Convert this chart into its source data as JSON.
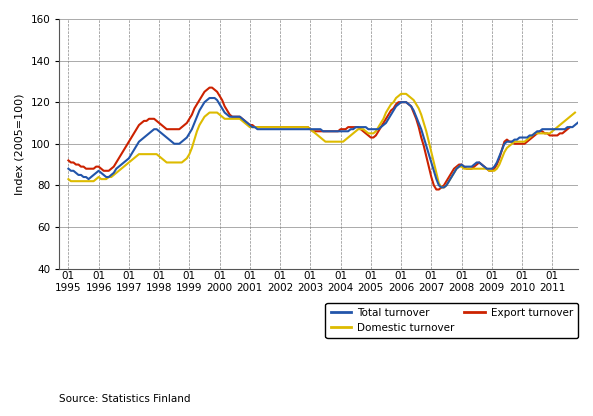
{
  "ylabel": "Index (2005=100)",
  "source": "Source: Statistics Finland",
  "ylim": [
    40,
    160
  ],
  "yticks": [
    40,
    60,
    80,
    100,
    120,
    140,
    160
  ],
  "colors": {
    "total": "#2255aa",
    "domestic": "#ddbb00",
    "export": "#cc2200"
  },
  "total_turnover": [
    88,
    87,
    87,
    86,
    85,
    85,
    84,
    84,
    83,
    84,
    85,
    86,
    87,
    86,
    85,
    84,
    84,
    85,
    86,
    88,
    89,
    90,
    91,
    92,
    93,
    95,
    97,
    99,
    101,
    102,
    103,
    104,
    105,
    106,
    107,
    107,
    106,
    105,
    104,
    103,
    102,
    101,
    100,
    100,
    100,
    101,
    102,
    103,
    105,
    107,
    110,
    113,
    116,
    118,
    120,
    121,
    122,
    122,
    122,
    121,
    119,
    117,
    115,
    114,
    113,
    113,
    113,
    113,
    113,
    112,
    111,
    110,
    109,
    108,
    108,
    107,
    107,
    107,
    107,
    107,
    107,
    107,
    107,
    107,
    107,
    107,
    107,
    107,
    107,
    107,
    107,
    107,
    107,
    107,
    107,
    107,
    107,
    107,
    107,
    107,
    107,
    106,
    106,
    106,
    106,
    106,
    106,
    106,
    106,
    106,
    106,
    106,
    107,
    107,
    108,
    108,
    108,
    108,
    108,
    107,
    107,
    107,
    107,
    107,
    108,
    109,
    110,
    112,
    114,
    116,
    118,
    119,
    120,
    120,
    120,
    119,
    118,
    116,
    113,
    110,
    107,
    103,
    99,
    95,
    91,
    87,
    83,
    80,
    79,
    79,
    80,
    82,
    84,
    86,
    88,
    89,
    90,
    89,
    89,
    89,
    89,
    90,
    91,
    91,
    90,
    89,
    88,
    88,
    88,
    89,
    91,
    94,
    97,
    100,
    101,
    101,
    101,
    102,
    102,
    103,
    103,
    103,
    103,
    104,
    104,
    105,
    106,
    106,
    107,
    107,
    107,
    107,
    107,
    107,
    107,
    107,
    107,
    107,
    108,
    108,
    108,
    109,
    110,
    111
  ],
  "domestic_turnover": [
    83,
    82,
    82,
    82,
    82,
    82,
    82,
    82,
    82,
    82,
    82,
    83,
    84,
    83,
    83,
    83,
    84,
    84,
    85,
    86,
    87,
    88,
    89,
    90,
    91,
    92,
    93,
    94,
    95,
    95,
    95,
    95,
    95,
    95,
    95,
    95,
    94,
    93,
    92,
    91,
    91,
    91,
    91,
    91,
    91,
    91,
    92,
    93,
    95,
    98,
    102,
    106,
    109,
    111,
    113,
    114,
    115,
    115,
    115,
    115,
    114,
    113,
    112,
    112,
    112,
    112,
    112,
    112,
    112,
    111,
    110,
    109,
    108,
    108,
    108,
    108,
    108,
    108,
    108,
    108,
    108,
    108,
    108,
    108,
    108,
    108,
    108,
    108,
    108,
    108,
    108,
    108,
    108,
    108,
    108,
    108,
    107,
    106,
    105,
    104,
    103,
    102,
    101,
    101,
    101,
    101,
    101,
    101,
    101,
    101,
    102,
    103,
    104,
    105,
    106,
    107,
    107,
    107,
    106,
    105,
    105,
    105,
    106,
    108,
    110,
    112,
    115,
    117,
    119,
    120,
    122,
    123,
    124,
    124,
    124,
    123,
    122,
    121,
    119,
    117,
    114,
    110,
    106,
    101,
    96,
    91,
    86,
    81,
    79,
    79,
    80,
    82,
    84,
    86,
    88,
    89,
    89,
    88,
    88,
    88,
    88,
    88,
    88,
    88,
    88,
    88,
    88,
    87,
    87,
    87,
    88,
    90,
    93,
    96,
    98,
    99,
    100,
    101,
    101,
    101,
    101,
    101,
    102,
    103,
    104,
    105,
    105,
    105,
    105,
    105,
    105,
    105,
    106,
    107,
    108,
    109,
    110,
    111,
    112,
    113,
    114,
    115
  ],
  "export_turnover": [
    92,
    91,
    91,
    90,
    90,
    89,
    89,
    88,
    88,
    88,
    88,
    89,
    89,
    88,
    87,
    87,
    87,
    88,
    89,
    91,
    93,
    95,
    97,
    99,
    101,
    103,
    105,
    107,
    109,
    110,
    111,
    111,
    112,
    112,
    112,
    111,
    110,
    109,
    108,
    107,
    107,
    107,
    107,
    107,
    107,
    108,
    109,
    110,
    112,
    114,
    117,
    119,
    121,
    123,
    125,
    126,
    127,
    127,
    126,
    125,
    123,
    121,
    118,
    116,
    114,
    113,
    113,
    113,
    113,
    112,
    111,
    110,
    109,
    109,
    108,
    108,
    108,
    108,
    108,
    108,
    108,
    108,
    108,
    108,
    108,
    108,
    108,
    108,
    108,
    108,
    108,
    108,
    108,
    108,
    108,
    108,
    107,
    106,
    106,
    106,
    106,
    106,
    106,
    106,
    106,
    106,
    106,
    106,
    107,
    107,
    107,
    108,
    108,
    108,
    108,
    108,
    107,
    106,
    105,
    104,
    103,
    103,
    104,
    106,
    108,
    110,
    112,
    114,
    116,
    117,
    119,
    120,
    120,
    120,
    120,
    119,
    118,
    115,
    112,
    108,
    103,
    99,
    94,
    89,
    84,
    80,
    78,
    78,
    79,
    80,
    82,
    84,
    86,
    88,
    89,
    90,
    90,
    89,
    88,
    88,
    88,
    89,
    90,
    91,
    90,
    89,
    88,
    87,
    87,
    88,
    90,
    93,
    97,
    101,
    102,
    101,
    101,
    100,
    100,
    100,
    100,
    100,
    101,
    102,
    103,
    104,
    105,
    106,
    106,
    105,
    105,
    104,
    104,
    104,
    104,
    105,
    105,
    106,
    107,
    108
  ],
  "n_months_total": 204,
  "n_months_export": 200,
  "start_year": 1995,
  "end_year": 2011
}
